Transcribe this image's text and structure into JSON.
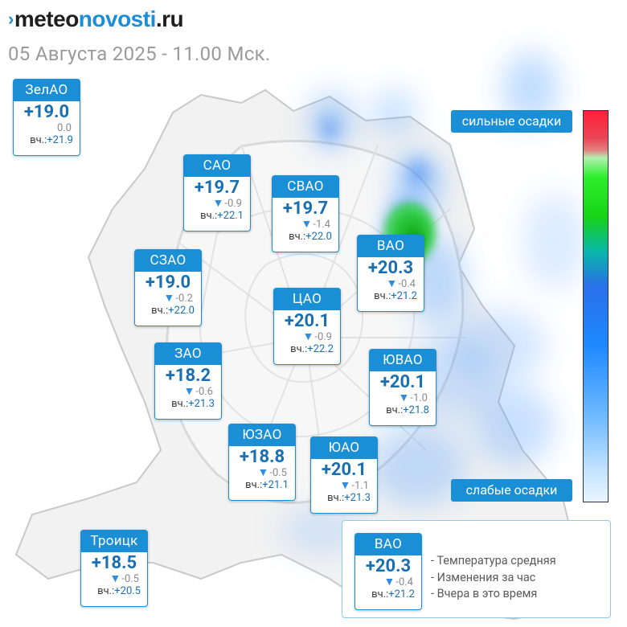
{
  "logo": {
    "prefix": "meteo",
    "middle": "novosti",
    "suffix": ".ru"
  },
  "datetime": "05 Августа 2025 - 11.00 Мск.",
  "yesterday_label": "вч.:",
  "districts": [
    {
      "name": "ЗелАО",
      "temp": "+19.0",
      "delta": "0.0",
      "trend": "none",
      "yesterday": "+21.9"
    },
    {
      "name": "САО",
      "temp": "+19.7",
      "delta": "-0.9",
      "trend": "down",
      "yesterday": "+22.1"
    },
    {
      "name": "СВАО",
      "temp": "+19.7",
      "delta": "-1.4",
      "trend": "down",
      "yesterday": "+22.0"
    },
    {
      "name": "СЗАО",
      "temp": "+19.0",
      "delta": "-0.2",
      "trend": "down",
      "yesterday": "+22.0"
    },
    {
      "name": "ВАО",
      "temp": "+20.3",
      "delta": "-0.4",
      "trend": "down",
      "yesterday": "+21.2"
    },
    {
      "name": "ЦАО",
      "temp": "+20.1",
      "delta": "-0.9",
      "trend": "down",
      "yesterday": "+22.2"
    },
    {
      "name": "ЗАО",
      "temp": "+18.2",
      "delta": "-0.6",
      "trend": "down",
      "yesterday": "+21.3"
    },
    {
      "name": "ЮВАО",
      "temp": "+20.1",
      "delta": "-1.0",
      "trend": "down",
      "yesterday": "+21.8"
    },
    {
      "name": "ЮЗАО",
      "temp": "+18.8",
      "delta": "-0.5",
      "trend": "down",
      "yesterday": "+21.1"
    },
    {
      "name": "ЮАО",
      "temp": "+20.1",
      "delta": "-1.1",
      "trend": "down",
      "yesterday": "+21.3"
    },
    {
      "name": "Троицк",
      "temp": "+18.5",
      "delta": "-0.5",
      "trend": "down",
      "yesterday": "+20.5"
    }
  ],
  "scale": {
    "strong_label": "сильные осадки",
    "weak_label": "слабые осадки"
  },
  "legend": {
    "sample": {
      "name": "ВАО",
      "temp": "+20.3",
      "delta": "-0.4",
      "trend": "down",
      "yesterday": "+21.2"
    },
    "lines": [
      "- Температура средняя",
      "- Изменения за час",
      "- Вчера в это время"
    ]
  },
  "colors": {
    "accent": "#1a8fd6",
    "temp_text": "#1a6fb0",
    "trend_down": "#2f8de0",
    "precip_strong": "#2cef2c",
    "precip_weak": "#6db9ff"
  },
  "icons": {
    "trend_down": "down-triangle-icon",
    "logo_mark": "chevron-mark-icon"
  }
}
